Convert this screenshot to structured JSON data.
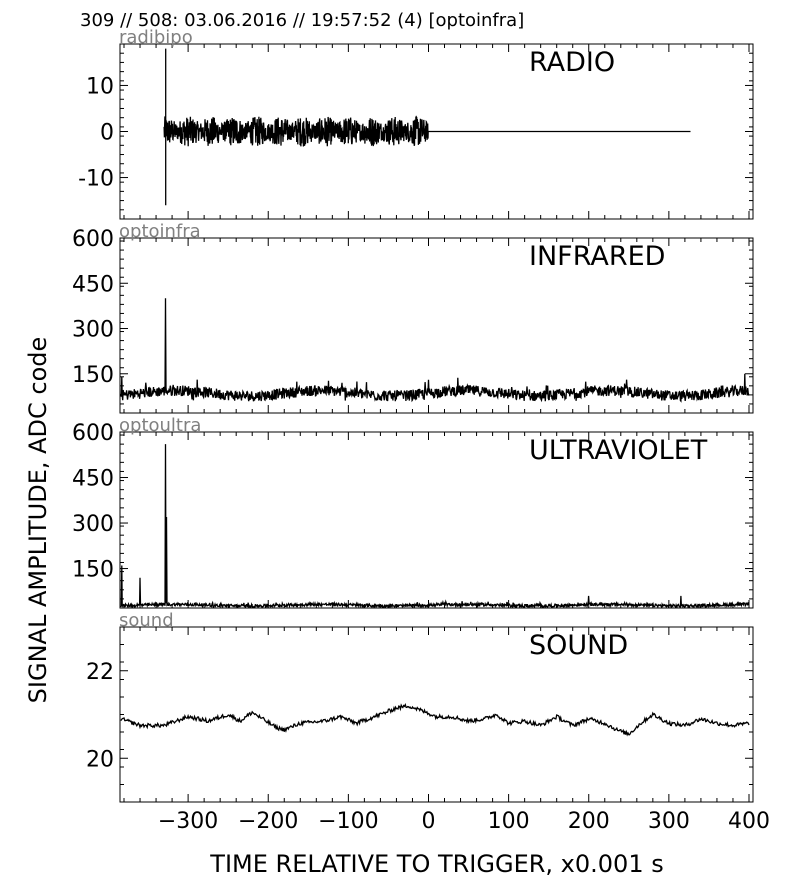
{
  "header": {
    "text": "309 // 508:   03.06.2016 // 19:57:52 (4)  [optoinfra]"
  },
  "axes": {
    "ylabel": "SIGNAL AMPLITUDE,  ADC code",
    "xlabel": "TIME RELATIVE TO TRIGGER,   x0.001 s"
  },
  "colors": {
    "trace": "#000000",
    "frame": "#000000",
    "channel_label": "#808080"
  },
  "chart_data": [
    {
      "type": "line",
      "title": "RADIO",
      "channel": "radibipo",
      "xlim": [
        -385,
        405
      ],
      "ylim": [
        -19,
        19
      ],
      "yticks": [
        -10,
        0,
        10
      ],
      "yticklabels": [
        "-10",
        "0",
        "10"
      ],
      "xticks": [
        -300,
        -200,
        -100,
        0,
        100,
        200,
        300,
        400
      ],
      "xticklabels": [],
      "series": [
        {
          "segments": [
            {
              "x": [
                -330,
                -330
              ],
              "y": [
                0,
                0
              ]
            },
            {
              "x": [
                -328,
                -328
              ],
              "y": [
                18,
                -16
              ]
            },
            {
              "kind": "noise_band",
              "x_range": [
                -330,
                0
              ],
              "amplitude": 3.3,
              "spike_x": []
            },
            {
              "x": [
                0,
                327
              ],
              "y": [
                0,
                0
              ]
            }
          ]
        }
      ]
    },
    {
      "type": "line",
      "title": "INFRARED",
      "channel": "optoinfra",
      "xlim": [
        -385,
        405
      ],
      "ylim": [
        20,
        600
      ],
      "yticks": [
        150,
        300,
        450,
        600
      ],
      "yticklabels": [
        "150",
        "300",
        "450",
        "600"
      ],
      "xticks": [
        -300,
        -200,
        -100,
        0,
        100,
        200,
        300,
        400
      ],
      "xticklabels": [],
      "series": [
        {
          "baseline": 80,
          "noise": 30,
          "x_range": [
            -384,
            400
          ],
          "peaks": [
            {
              "x": -328,
              "y": 400
            },
            {
              "x": -383,
              "y": 140
            },
            {
              "x": 0,
              "y": 130
            },
            {
              "x": 395,
              "y": 150
            }
          ]
        }
      ]
    },
    {
      "type": "line",
      "title": "ULTRAVIOLET",
      "channel": "optoultra",
      "xlim": [
        -385,
        405
      ],
      "ylim": [
        20,
        600
      ],
      "yticks": [
        150,
        300,
        450,
        600
      ],
      "yticklabels": [
        "150",
        "300",
        "450",
        "600"
      ],
      "xticks": [
        -300,
        -200,
        -100,
        0,
        100,
        200,
        300,
        400
      ],
      "xticklabels": [],
      "series": [
        {
          "baseline": 28,
          "noise": 8,
          "x_range": [
            -384,
            400
          ],
          "peaks": [
            {
              "x": -383,
              "y": 160
            },
            {
              "x": -360,
              "y": 120
            },
            {
              "x": -328,
              "y": 560
            },
            {
              "x": -327,
              "y": 320
            },
            {
              "x": 200,
              "y": 60
            },
            {
              "x": 315,
              "y": 60
            }
          ]
        }
      ]
    },
    {
      "type": "line",
      "title": "SOUND",
      "channel": "sound",
      "xlim": [
        -385,
        405
      ],
      "ylim": [
        19,
        23
      ],
      "yticks": [
        20,
        22
      ],
      "yticklabels": [
        "20",
        "22"
      ],
      "xticks": [
        -300,
        -200,
        -100,
        0,
        100,
        200,
        300,
        400
      ],
      "xticklabels": [
        "−300",
        "−200",
        "−100",
        "0",
        "100",
        "200",
        "300",
        "400"
      ],
      "series": [
        {
          "x": [
            -384,
            -360,
            -330,
            -300,
            -275,
            -250,
            -235,
            -220,
            -190,
            -180,
            -160,
            -130,
            -110,
            -90,
            -60,
            -40,
            -25,
            -10,
            10,
            30,
            50,
            70,
            85,
            100,
            120,
            140,
            160,
            180,
            200,
            220,
            235,
            250,
            265,
            280,
            300,
            320,
            340,
            360,
            380,
            400
          ],
          "y": [
            20.9,
            20.75,
            20.75,
            20.95,
            20.85,
            21.0,
            20.85,
            21.05,
            20.7,
            20.65,
            20.8,
            20.85,
            20.95,
            20.8,
            21.0,
            21.15,
            21.2,
            21.1,
            20.95,
            20.95,
            20.85,
            20.9,
            21.0,
            20.8,
            20.85,
            20.75,
            20.95,
            20.75,
            20.9,
            20.8,
            20.65,
            20.55,
            20.8,
            21.0,
            20.8,
            20.75,
            20.9,
            20.8,
            20.75,
            20.8
          ]
        }
      ]
    }
  ]
}
